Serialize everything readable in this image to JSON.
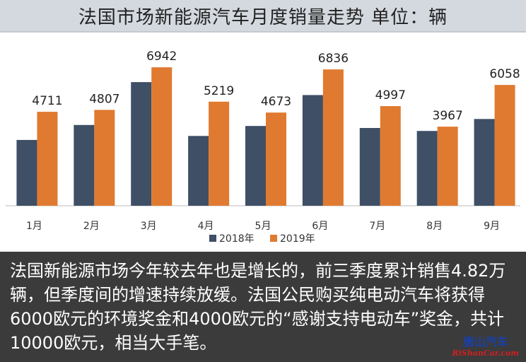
{
  "title": "法国市场新能源汽车月度销量走势  单位：辆",
  "chart_data": {
    "type": "bar",
    "categories": [
      "1月",
      "2月",
      "3月",
      "4月",
      "5月",
      "6月",
      "7月",
      "8月",
      "9月"
    ],
    "series": [
      {
        "name": "2018年",
        "color": "#3e4f66",
        "values": [
          3300,
          4050,
          6200,
          3500,
          4000,
          5550,
          3900,
          3750,
          4350
        ]
      },
      {
        "name": "2019年",
        "color": "#e07a30",
        "values": [
          4711,
          4807,
          6942,
          5219,
          4673,
          6836,
          4997,
          3967,
          6058
        ]
      }
    ],
    "data_labels_series": "2019年",
    "ylim": [
      0,
      7800
    ],
    "grid": false,
    "legend": "bottom"
  },
  "caption": "法国新能源市场今年较去年也是增长的，前三季度累计销售4.82万辆，但季度间的增速持续放缓。法国公民购买纯电动汽车将获得6000欧元的环境奖金和4000欧元的“感谢支持电动车”奖金，共计10000欧元，相当大手笔。",
  "watermark": {
    "cn": "唐山汽车",
    "en": "RiShanCar.com"
  }
}
